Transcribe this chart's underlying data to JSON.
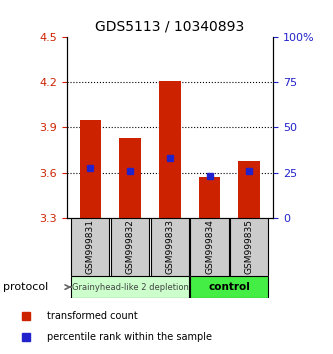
{
  "title": "GDS5113 / 10340893",
  "samples": [
    "GSM999831",
    "GSM999832",
    "GSM999833",
    "GSM999834",
    "GSM999835"
  ],
  "bar_bottoms": [
    3.3,
    3.3,
    3.3,
    3.3,
    3.3
  ],
  "bar_tops": [
    3.95,
    3.83,
    4.21,
    3.57,
    3.68
  ],
  "percentile_values": [
    3.63,
    3.61,
    3.7,
    3.58,
    3.61
  ],
  "ylim_left": [
    3.3,
    4.5
  ],
  "ylim_right": [
    0,
    100
  ],
  "yticks_left": [
    3.3,
    3.6,
    3.9,
    4.2,
    4.5
  ],
  "yticks_left_labels": [
    "3.3",
    "3.6",
    "3.9",
    "4.2",
    "4.5"
  ],
  "yticks_right": [
    0,
    25,
    50,
    75,
    100
  ],
  "yticks_right_labels": [
    "0",
    "25",
    "50",
    "75",
    "100%"
  ],
  "hlines": [
    3.6,
    3.9,
    4.2
  ],
  "bar_color": "#cc2200",
  "percentile_color": "#2222cc",
  "group1_indices": [
    0,
    1,
    2
  ],
  "group2_indices": [
    3,
    4
  ],
  "group1_label": "Grainyhead-like 2 depletion",
  "group2_label": "control",
  "group1_color": "#ccffcc",
  "group2_color": "#44ee44",
  "protocol_label": "protocol",
  "legend_items": [
    {
      "label": "transformed count",
      "color": "#cc2200"
    },
    {
      "label": "percentile rank within the sample",
      "color": "#2222cc"
    }
  ],
  "background_color": "#ffffff",
  "label_box_color": "#cccccc",
  "bar_width": 0.55
}
